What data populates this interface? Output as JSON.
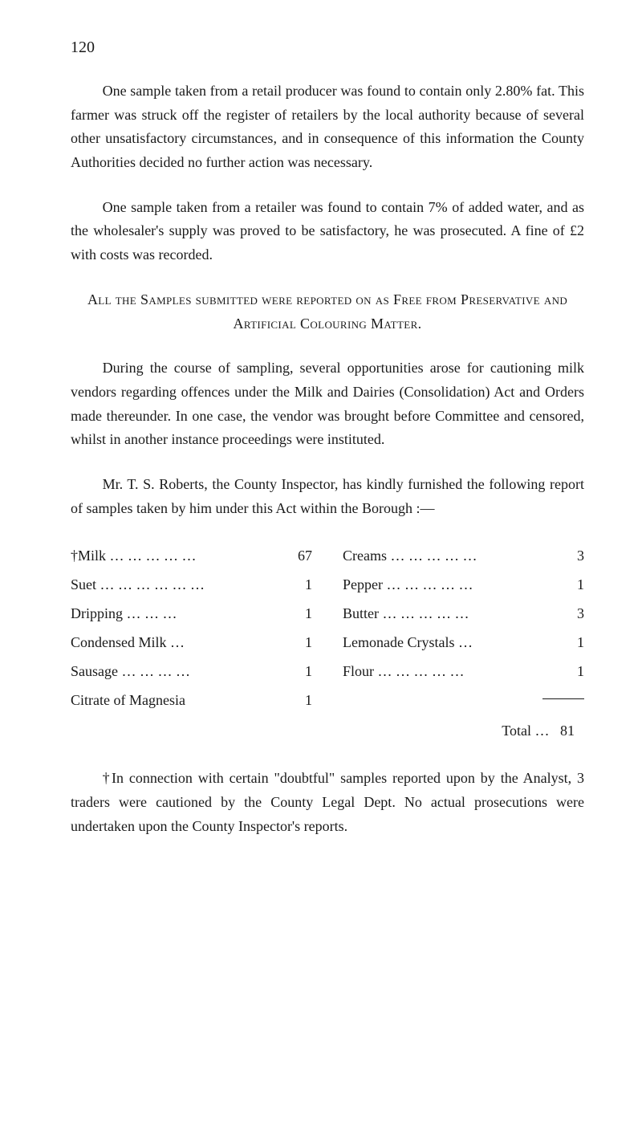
{
  "page_number": "120",
  "paragraphs": {
    "p1": "One sample taken from a retail producer was found to contain only 2.80% fat. This farmer was struck off the register of retailers by the local authority because of several other unsatisfactory circumstances, and in consequence of this information the County Authorities decided no further action was necessary.",
    "p2": "One sample taken from a retailer was found to contain 7% of added water, and as the wholesaler's supply was proved to be satisfactory, he was prosecuted. A fine of £2 with costs was recorded.",
    "p3": "During the course of sampling, several opportunities arose for cautioning milk vendors regarding offences under the Milk and Dairies (Consolidation) Act and Orders made thereunder. In one case, the vendor was brought before Committee and censored, whilst in another instance proceedings were instituted.",
    "p4": "Mr. T. S. Roberts, the County Inspector, has kindly furnished the following report of samples taken by him under this Act within the Borough :—"
  },
  "section_heading": "All the Samples submitted were reported on as Free from Preservative and Artificial Colouring Matter.",
  "list_left": [
    {
      "label": "†Milk  … … … … …",
      "value": "67"
    },
    {
      "label": "Suet … … … … … …",
      "value": "1"
    },
    {
      "label": "Dripping    … … …",
      "value": "1"
    },
    {
      "label": "Condensed Milk    …",
      "value": "1"
    },
    {
      "label": "Sausage   … … … …",
      "value": "1"
    },
    {
      "label": "Citrate of Magnesia",
      "value": "1"
    }
  ],
  "list_right": [
    {
      "label": "Creams … … … … …",
      "value": "3"
    },
    {
      "label": "Pepper … … … … …",
      "value": "1"
    },
    {
      "label": "Butter … … … … …",
      "value": "3"
    },
    {
      "label": "Lemonade Crystals …",
      "value": "1"
    },
    {
      "label": "Flour    … … … … …",
      "value": "1"
    }
  ],
  "total_label": "Total …",
  "total_value": "81",
  "footnote": "†In connection with certain \"doubtful\" samples reported upon by the Analyst, 3 traders were cautioned by the County Legal Dept. No actual prosecutions were undertaken upon the County Inspector's reports."
}
